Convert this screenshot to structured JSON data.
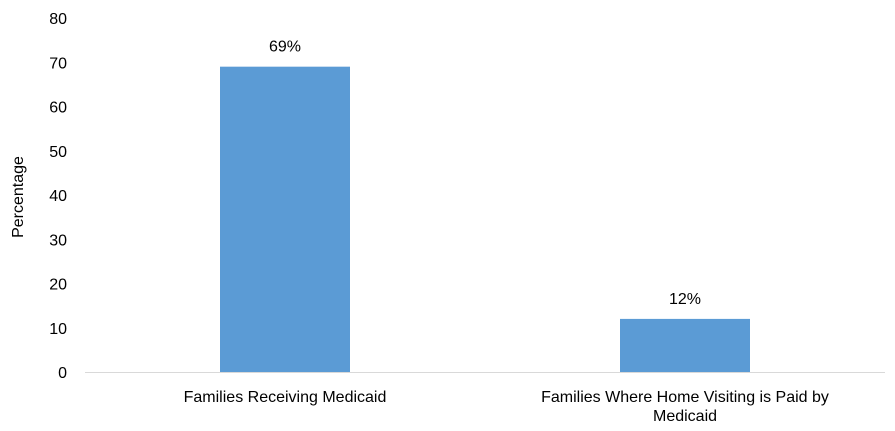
{
  "chart_data": {
    "type": "bar",
    "title": "",
    "xlabel": "",
    "ylabel": "Percentage",
    "ylim": [
      0,
      80
    ],
    "yticks": [
      0,
      10,
      20,
      30,
      40,
      50,
      60,
      70,
      80
    ],
    "categories": [
      [
        "Families Receiving Medicaid"
      ],
      [
        "Families Where Home Visiting is Paid by",
        "Medicaid"
      ]
    ],
    "values": [
      69,
      12
    ],
    "data_labels": [
      "69%",
      "12%"
    ],
    "bar_color": "#5B9BD5",
    "grid": false,
    "legend": "none"
  }
}
